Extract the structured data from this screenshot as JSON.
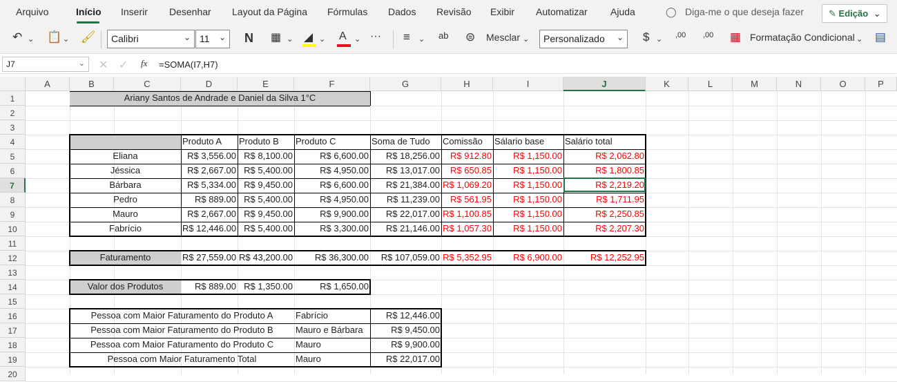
{
  "menu": {
    "tabs": [
      "Arquivo",
      "Início",
      "Inserir",
      "Desenhar",
      "Layout da Página",
      "Fórmulas",
      "Dados",
      "Revisão",
      "Exibir",
      "Automatizar",
      "Ajuda"
    ],
    "tellme": "Diga-me o que deseja fazer",
    "edit_mode": "Edição"
  },
  "ribbon": {
    "font": "Calibri",
    "font_size": "11",
    "bold": "N",
    "merge": "Mesclar",
    "number_format": "Personalizado",
    "currency": "$",
    "inc_decimal": ",00",
    "dec_decimal": ",00",
    "cond_format": "Formatação Condicional",
    "more": "···"
  },
  "formula_bar": {
    "cell_ref": "J7",
    "fx": "fx",
    "formula": "=SOMA(I7,H7)"
  },
  "columns": [
    "A",
    "B",
    "C",
    "D",
    "E",
    "F",
    "G",
    "H",
    "I",
    "J",
    "K",
    "L",
    "M",
    "N",
    "O",
    "P"
  ],
  "rows": [
    "1",
    "2",
    "3",
    "4",
    "5",
    "6",
    "7",
    "8",
    "9",
    "10",
    "11",
    "12",
    "13",
    "14",
    "15",
    "16",
    "17",
    "18",
    "19",
    "20"
  ],
  "sheet": {
    "title": "Ariany Santos de Andrade e Daniel da Silva  1°C",
    "headers": [
      "Produto A",
      "Produto B",
      "Produto C",
      "Soma de Tudo",
      "Comissão",
      "Sálario base",
      "Salário total"
    ],
    "people": [
      {
        "name": "Eliana",
        "a": "R$ 3,556.00",
        "b": "R$ 8,100.00",
        "c": "R$ 6,600.00",
        "sum": "R$ 18,256.00",
        "com": "R$ 912.80",
        "base": "R$ 1,150.00",
        "total": "R$ 2,062.80"
      },
      {
        "name": "Jéssica",
        "a": "R$ 2,667.00",
        "b": "R$ 5,400.00",
        "c": "R$ 4,950.00",
        "sum": "R$ 13,017.00",
        "com": "R$ 650.85",
        "base": "R$ 1,150.00",
        "total": "R$ 1,800.85"
      },
      {
        "name": "Bárbara",
        "a": "R$ 5,334.00",
        "b": "R$ 9,450.00",
        "c": "R$ 6,600.00",
        "sum": "R$ 21,384.00",
        "com": "R$ 1,069.20",
        "base": "R$ 1,150.00",
        "total": "R$ 2,219.20"
      },
      {
        "name": "Pedro",
        "a": "R$ 889.00",
        "b": "R$ 5,400.00",
        "c": "R$ 4,950.00",
        "sum": "R$ 11,239.00",
        "com": "R$ 561.95",
        "base": "R$ 1,150.00",
        "total": "R$ 1,711.95"
      },
      {
        "name": "Mauro",
        "a": "R$ 2,667.00",
        "b": "R$ 9,450.00",
        "c": "R$ 9,900.00",
        "sum": "R$ 22,017.00",
        "com": "R$ 1,100.85",
        "base": "R$ 1,150.00",
        "total": "R$ 2,250.85"
      },
      {
        "name": "Fabrício",
        "a": "R$ 12,446.00",
        "b": "R$ 5,400.00",
        "c": "R$ 3,300.00",
        "sum": "R$ 21,146.00",
        "com": "R$ 1,057.30",
        "base": "R$ 1,150.00",
        "total": "R$ 2,207.30"
      }
    ],
    "faturamento": {
      "label": "Faturamento",
      "a": "R$ 27,559.00",
      "b": "R$ 43,200.00",
      "c": "R$ 36,300.00",
      "sum": "R$ 107,059.00",
      "com": "R$ 5,352.95",
      "base": "R$ 6,900.00",
      "total": "R$ 12,252.95"
    },
    "valores": {
      "label": "Valor dos Produtos",
      "a": "R$ 889.00",
      "b": "R$ 1,350.00",
      "c": "R$ 1,650.00"
    },
    "maiores": [
      {
        "label": "Pessoa com Maior Faturamento do Produto A",
        "who": "Fabrício",
        "value": "R$ 12,446.00"
      },
      {
        "label": "Pessoa com Maior Faturamento do Produto B",
        "who": "Mauro e Bárbara",
        "value": "R$ 9,450.00"
      },
      {
        "label": "Pessoa com Maior Faturamento do Produto C",
        "who": "Mauro",
        "value": "R$ 9,900.00"
      },
      {
        "label": "Pessoa com Maior Faturamento Total",
        "who": "Mauro",
        "value": "R$ 22,017.00"
      }
    ]
  }
}
